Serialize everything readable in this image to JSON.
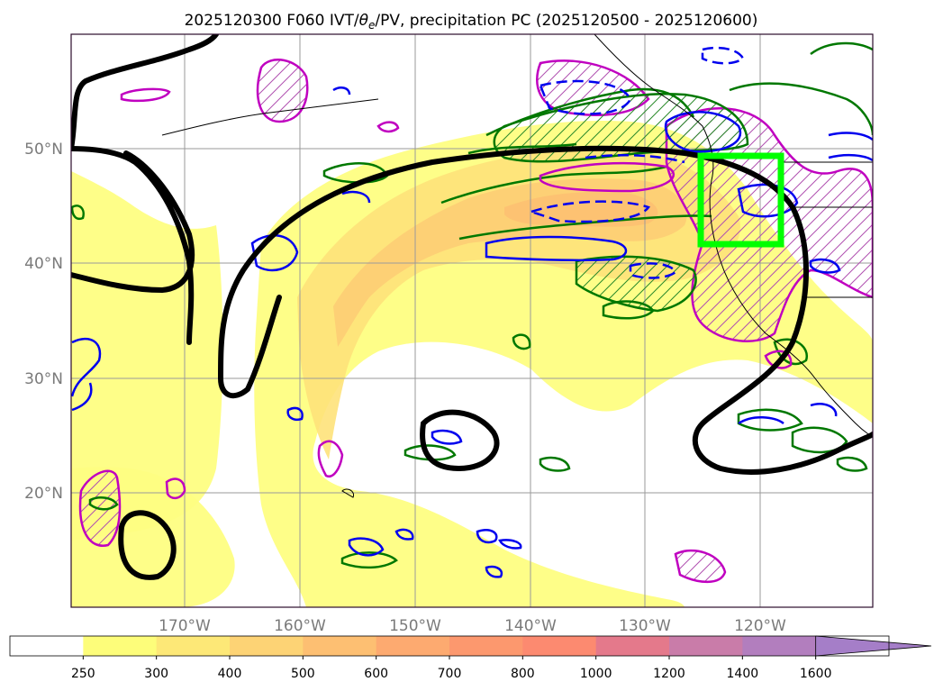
{
  "title": {
    "run": "2025120300",
    "forecast": "F060",
    "fields_prefix": "IVT/",
    "theta_symbol": "θ",
    "theta_sub": "e",
    "fields_suffix": "/PV, precipitation PC",
    "period": "(2025120500 - 2025120600)"
  },
  "map": {
    "lon_labels": [
      "170°W",
      "160°W",
      "150°W",
      "140°W",
      "130°W",
      "120°W"
    ],
    "lat_labels": [
      "20°N",
      "30°N",
      "40°N",
      "50°N"
    ]
  },
  "colorbar": {
    "levels": [
      "250",
      "300",
      "400",
      "500",
      "600",
      "700",
      "800",
      "1000",
      "1200",
      "1400",
      "1600"
    ],
    "colors": [
      "#ffffff",
      "#fdfd7a",
      "#fde877",
      "#fdd375",
      "#fdbf72",
      "#fdaa70",
      "#fc986e",
      "#fc8a70",
      "#e4798b",
      "#c97ca9",
      "#b27ebe",
      "#a57ec8"
    ],
    "extend": "max"
  },
  "colors": {
    "grid": "#9a9a9a",
    "ivt_fill_light": "#fefe82",
    "ivt_fill_mid": "#fee27a",
    "ivt_fill_core": "#fdcd74",
    "theta_contour": "#007800",
    "pv_contour": "#0000ee",
    "precip_pc_contour": "#c000c0",
    "jet_contour": "#000000",
    "highlight_box": "#00ff00"
  }
}
